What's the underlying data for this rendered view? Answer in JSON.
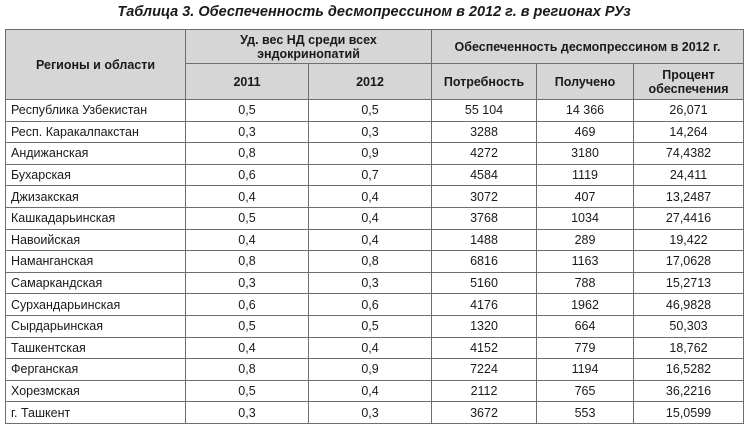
{
  "caption": "Таблица 3. Обеспеченность десмопрессином в 2012 г. в регионах РУз",
  "header": {
    "region": "Регионы и области",
    "share_group": "Уд. вес НД среди всех эндокринопатий",
    "y2011": "2011",
    "y2012": "2012",
    "supply_group": "Обеспеченность десмопрессином в 2012 г.",
    "need": "Потребность",
    "received": "Получено",
    "percent": "Процент обеспечения"
  },
  "rows": [
    {
      "region": "Республика Узбекистан",
      "y2011": "0,5",
      "y2012": "0,5",
      "need": "55 104",
      "received": "14 366",
      "percent": "26,071"
    },
    {
      "region": "Респ. Каракалпакстан",
      "y2011": "0,3",
      "y2012": "0,3",
      "need": "3288",
      "received": "469",
      "percent": "14,264"
    },
    {
      "region": "Андижанская",
      "y2011": "0,8",
      "y2012": "0,9",
      "need": "4272",
      "received": "3180",
      "percent": "74,4382"
    },
    {
      "region": "Бухарская",
      "y2011": "0,6",
      "y2012": "0,7",
      "need": "4584",
      "received": "1119",
      "percent": "24,411"
    },
    {
      "region": "Джизакская",
      "y2011": "0,4",
      "y2012": "0,4",
      "need": "3072",
      "received": "407",
      "percent": "13,2487"
    },
    {
      "region": "Кашкадарьинская",
      "y2011": "0,5",
      "y2012": "0,4",
      "need": "3768",
      "received": "1034",
      "percent": "27,4416"
    },
    {
      "region": "Навоийская",
      "y2011": "0,4",
      "y2012": "0,4",
      "need": "1488",
      "received": "289",
      "percent": "19,422"
    },
    {
      "region": "Наманганская",
      "y2011": "0,8",
      "y2012": "0,8",
      "need": "6816",
      "received": "1163",
      "percent": "17,0628"
    },
    {
      "region": "Самаркандская",
      "y2011": "0,3",
      "y2012": "0,3",
      "need": "5160",
      "received": "788",
      "percent": "15,2713"
    },
    {
      "region": "Сурхандарьинская",
      "y2011": "0,6",
      "y2012": "0,6",
      "need": "4176",
      "received": "1962",
      "percent": "46,9828"
    },
    {
      "region": "Сырдарьинская",
      "y2011": "0,5",
      "y2012": "0,5",
      "need": "1320",
      "received": "664",
      "percent": "50,303"
    },
    {
      "region": "Ташкентская",
      "y2011": "0,4",
      "y2012": "0,4",
      "need": "4152",
      "received": "779",
      "percent": "18,762"
    },
    {
      "region": "Ферганская",
      "y2011": "0,8",
      "y2012": "0,9",
      "need": "7224",
      "received": "1194",
      "percent": "16,5282"
    },
    {
      "region": "Хорезмская",
      "y2011": "0,5",
      "y2012": "0,4",
      "need": "2112",
      "received": "765",
      "percent": "36,2216"
    },
    {
      "region": "г. Ташкент",
      "y2011": "0,3",
      "y2012": "0,3",
      "need": "3672",
      "received": "553",
      "percent": "15,0599"
    }
  ]
}
